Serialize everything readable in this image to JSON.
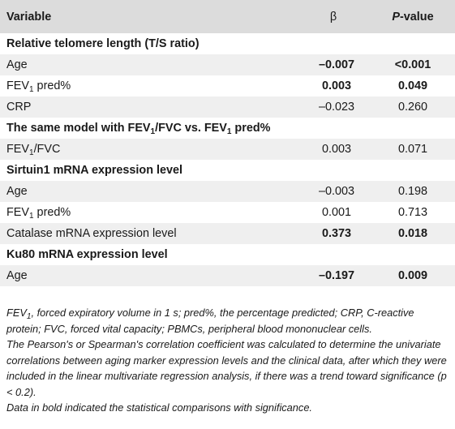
{
  "header": {
    "variable": "Variable",
    "beta": "β",
    "p_prefix": "P",
    "p_suffix": "-value"
  },
  "rows": [
    {
      "type": "section",
      "label": "Relative telomere length (T/S ratio)"
    },
    {
      "type": "data",
      "label": "Age",
      "beta": "–0.007",
      "p": "<0.001",
      "bold_values": true
    },
    {
      "type": "data",
      "label_main": "FEV",
      "label_sub": "1",
      "label_rest": " pred%",
      "beta": "0.003",
      "p": "0.049",
      "bold_values": true
    },
    {
      "type": "data",
      "label": "CRP",
      "beta": "–0.023",
      "p": "0.260",
      "bold_values": false
    },
    {
      "type": "section",
      "label_parts": [
        "The same model with FEV",
        "1",
        "/FVC vs. FEV",
        "1",
        " pred%"
      ]
    },
    {
      "type": "data",
      "label_main": "FEV",
      "label_sub": "1",
      "label_rest": "/FVC",
      "beta": "0.003",
      "p": "0.071",
      "bold_values": false
    },
    {
      "type": "section",
      "label": "Sirtuin1 mRNA expression level"
    },
    {
      "type": "data",
      "label": "Age",
      "beta": "–0.003",
      "p": "0.198",
      "bold_values": false
    },
    {
      "type": "data",
      "label_main": "FEV",
      "label_sub": "1",
      "label_rest": " pred%",
      "beta": "0.001",
      "p": "0.713",
      "bold_values": false
    },
    {
      "type": "data",
      "label": "Catalase mRNA expression level",
      "beta": "0.373",
      "p": "0.018",
      "bold_values": true
    },
    {
      "type": "section",
      "label": "Ku80 mRNA expression level"
    },
    {
      "type": "data",
      "label": "Age",
      "beta": "–0.197",
      "p": "0.009",
      "bold_values": true
    }
  ],
  "footnotes": {
    "abbrev_fev": "FEV",
    "abbrev_sub": "1",
    "abbrev_rest": ", forced expiratory volume in 1 s; pred%, the percentage predicted; CRP, C-reactive protein; FVC, forced vital capacity; PBMCs, peripheral blood mononuclear cells.",
    "method": "The Pearson's or Spearman's correlation coefficient was calculated to determine the univariate correlations between aging marker expression levels and the clinical data, after which they were included in the linear multivariate regression analysis, if there was a trend toward significance (p < 0.2).",
    "bold_note": "Data in bold indicated the statistical comparisons with significance."
  },
  "colors": {
    "header_bg": "#dcdcdc",
    "alt_row_bg": "#efefef",
    "text": "#1a1a1a"
  }
}
